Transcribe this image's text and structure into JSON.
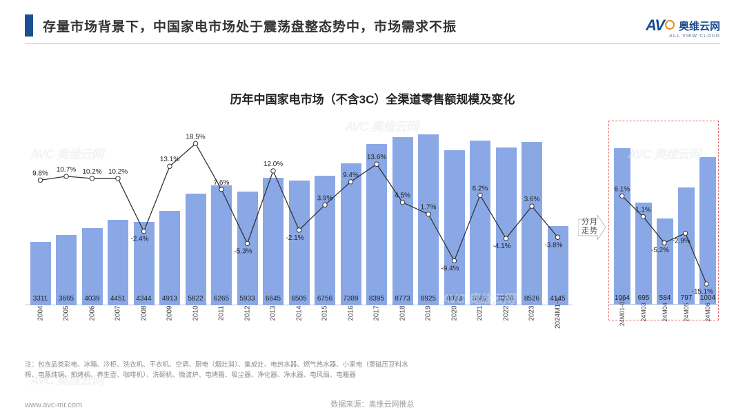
{
  "header": {
    "title": "存量市场背景下，中国家电市场处于震荡盘整态势中，市场需求不振",
    "accent_color": "#1b4f93"
  },
  "logo": {
    "brand_lat": "AV",
    "brand_cn": "奥维云网",
    "brand_en": "ALL VIEW CLOUD"
  },
  "chart": {
    "title": "历年中国家电市场（不含3C）全渠道零售额规模及变化",
    "bar_color": "#8aa8e6",
    "line_color": "#333333",
    "background": "#ffffff",
    "value_fontsize": 10,
    "pct_fontsize": 10,
    "xlabel_fontsize": 10,
    "bar_width_main": 30,
    "bar_gap_main": 7.5,
    "bar_width_month": 24,
    "bar_gap_month": 7,
    "value_max_main": 9200,
    "value_max_month": 1200,
    "pct_range": [
      -20,
      22
    ],
    "main": [
      {
        "x": "2004",
        "v": 3311,
        "p": 9.8
      },
      {
        "x": "2005",
        "v": 3665,
        "p": 10.7
      },
      {
        "x": "2006",
        "v": 4039,
        "p": 10.2
      },
      {
        "x": "2007",
        "v": 4451,
        "p": 10.2
      },
      {
        "x": "2008",
        "v": 4344,
        "p": -2.4
      },
      {
        "x": "2009",
        "v": 4913,
        "p": 13.1
      },
      {
        "x": "2010",
        "v": 5822,
        "p": 18.5
      },
      {
        "x": "2011",
        "v": 6265,
        "p": 7.6
      },
      {
        "x": "2012",
        "v": 5933,
        "p": -5.3
      },
      {
        "x": "2013",
        "v": 6645,
        "p": 12.0
      },
      {
        "x": "2014",
        "v": 6505,
        "p": -2.1
      },
      {
        "x": "2015",
        "v": 6756,
        "p": 3.9
      },
      {
        "x": "2016",
        "v": 7389,
        "p": 9.4
      },
      {
        "x": "2017",
        "v": 8395,
        "p": 13.6
      },
      {
        "x": "2018",
        "v": 8773,
        "p": 4.5
      },
      {
        "x": "2019",
        "v": 8925,
        "p": 1.7
      },
      {
        "x": "2020",
        "v": 8083,
        "p": -9.4
      },
      {
        "x": "2021",
        "v": 8582,
        "p": 6.2
      },
      {
        "x": "2022",
        "v": 8228,
        "p": -4.1
      },
      {
        "x": "2023",
        "v": 8526,
        "p": 3.6
      },
      {
        "x": "2024M1-6",
        "v": 4145,
        "p": -3.8
      }
    ],
    "month": [
      {
        "x": "24M01-02",
        "v": 1064,
        "p": 6.1
      },
      {
        "x": "24M03",
        "v": 695,
        "p": 1.1
      },
      {
        "x": "24M04",
        "v": 584,
        "p": -5.2
      },
      {
        "x": "24M05",
        "v": 797,
        "p": -2.9
      },
      {
        "x": "24M06",
        "v": 1004,
        "p": -15.1
      }
    ]
  },
  "arrow_label": "分月\n走势",
  "footnote": "注：包含品类彩电、冰箱、冷柜、洗衣机、干衣机、空调、厨电（烟灶消）、集成灶、电热水器、燃气热水器、小家电（煲磁压豆料水榨、电蒸炖锅、煎烤机、养生壶、咖啡机）、洗碗机、微波炉、电烤箱、吸尘器、净化器、净水器、电风扇、电暖器",
  "footer": {
    "url": "www.avc-mr.com",
    "source": "数据来源：奥维云网推总"
  },
  "watermark": "AVC 奥维云网"
}
